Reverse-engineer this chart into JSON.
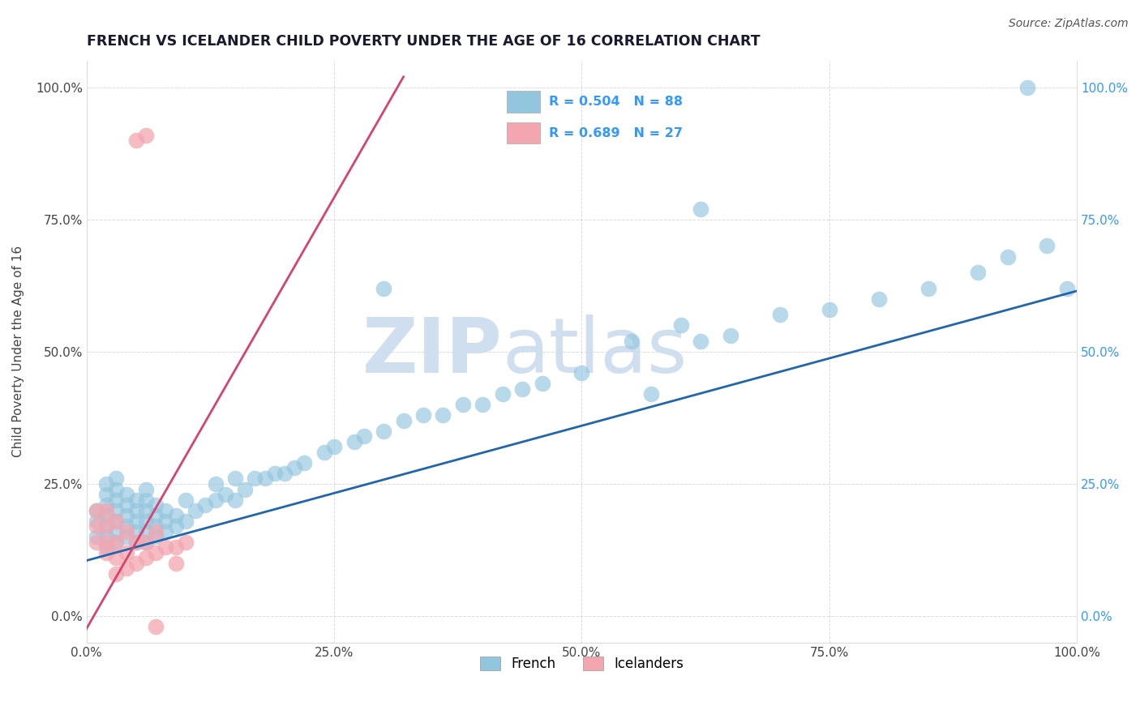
{
  "title": "FRENCH VS ICELANDER CHILD POVERTY UNDER THE AGE OF 16 CORRELATION CHART",
  "source": "Source: ZipAtlas.com",
  "ylabel": "Child Poverty Under the Age of 16",
  "xlabel": "",
  "xlim": [
    0.0,
    1.0
  ],
  "ylim": [
    -0.05,
    1.05
  ],
  "xtick_labels": [
    "0.0%",
    "25.0%",
    "50.0%",
    "75.0%",
    "100.0%"
  ],
  "ytick_labels": [
    "0.0%",
    "25.0%",
    "50.0%",
    "75.0%",
    "100.0%"
  ],
  "french_R": 0.504,
  "french_N": 88,
  "icelander_R": 0.689,
  "icelander_N": 27,
  "french_color": "#92c5de",
  "french_line_color": "#2166ac",
  "icelander_color": "#f4a6b0",
  "icelander_line_color": "#d6436e",
  "watermark_zip": "ZIP",
  "watermark_atlas": "atlas",
  "watermark_color": "#d0dff0",
  "title_color": "#1a1a2e",
  "axis_label_color": "#444444",
  "tick_color": "#444444",
  "grid_color": "#cccccc",
  "right_tick_color": "#3399ff",
  "legend_french_label": "R = 0.504   N = 88",
  "legend_icelander_label": "R = 0.689   N = 27",
  "french_line_x0": 0.0,
  "french_line_y0": 0.105,
  "french_line_x1": 1.0,
  "french_line_y1": 0.615,
  "icelander_line_x0": -0.005,
  "icelander_line_y0": -0.04,
  "icelander_line_x1": 0.32,
  "icelander_line_y1": 1.02,
  "french_x": [
    0.01,
    0.01,
    0.01,
    0.02,
    0.02,
    0.02,
    0.02,
    0.02,
    0.02,
    0.02,
    0.03,
    0.03,
    0.03,
    0.03,
    0.03,
    0.03,
    0.03,
    0.04,
    0.04,
    0.04,
    0.04,
    0.04,
    0.05,
    0.05,
    0.05,
    0.05,
    0.05,
    0.06,
    0.06,
    0.06,
    0.06,
    0.06,
    0.06,
    0.07,
    0.07,
    0.07,
    0.07,
    0.08,
    0.08,
    0.08,
    0.09,
    0.09,
    0.1,
    0.1,
    0.11,
    0.12,
    0.13,
    0.13,
    0.14,
    0.15,
    0.15,
    0.16,
    0.17,
    0.18,
    0.19,
    0.2,
    0.21,
    0.22,
    0.24,
    0.25,
    0.27,
    0.28,
    0.3,
    0.32,
    0.34,
    0.36,
    0.38,
    0.4,
    0.42,
    0.44,
    0.46,
    0.5,
    0.55,
    0.57,
    0.6,
    0.62,
    0.65,
    0.7,
    0.75,
    0.8,
    0.85,
    0.9,
    0.93,
    0.95,
    0.97,
    0.99,
    0.3,
    0.62
  ],
  "french_y": [
    0.15,
    0.18,
    0.2,
    0.13,
    0.15,
    0.17,
    0.19,
    0.21,
    0.23,
    0.25,
    0.14,
    0.16,
    0.18,
    0.2,
    0.22,
    0.24,
    0.26,
    0.15,
    0.17,
    0.19,
    0.21,
    0.23,
    0.14,
    0.16,
    0.18,
    0.2,
    0.22,
    0.14,
    0.16,
    0.18,
    0.2,
    0.22,
    0.24,
    0.15,
    0.17,
    0.19,
    0.21,
    0.16,
    0.18,
    0.2,
    0.17,
    0.19,
    0.18,
    0.22,
    0.2,
    0.21,
    0.22,
    0.25,
    0.23,
    0.22,
    0.26,
    0.24,
    0.26,
    0.26,
    0.27,
    0.27,
    0.28,
    0.29,
    0.31,
    0.32,
    0.33,
    0.34,
    0.35,
    0.37,
    0.38,
    0.38,
    0.4,
    0.4,
    0.42,
    0.43,
    0.44,
    0.46,
    0.52,
    0.42,
    0.55,
    0.52,
    0.53,
    0.57,
    0.58,
    0.6,
    0.62,
    0.65,
    0.68,
    1.0,
    0.7,
    0.62,
    0.62,
    0.77
  ],
  "icelander_x": [
    0.01,
    0.01,
    0.01,
    0.02,
    0.02,
    0.02,
    0.02,
    0.03,
    0.03,
    0.03,
    0.03,
    0.04,
    0.04,
    0.04,
    0.05,
    0.05,
    0.05,
    0.06,
    0.06,
    0.06,
    0.07,
    0.07,
    0.08,
    0.09,
    0.09,
    0.1,
    0.07
  ],
  "icelander_y": [
    0.14,
    0.17,
    0.2,
    0.12,
    0.14,
    0.17,
    0.2,
    0.08,
    0.11,
    0.14,
    0.18,
    0.09,
    0.12,
    0.16,
    0.1,
    0.14,
    0.9,
    0.11,
    0.14,
    0.91,
    0.12,
    0.16,
    0.13,
    0.1,
    0.13,
    0.14,
    -0.02
  ]
}
